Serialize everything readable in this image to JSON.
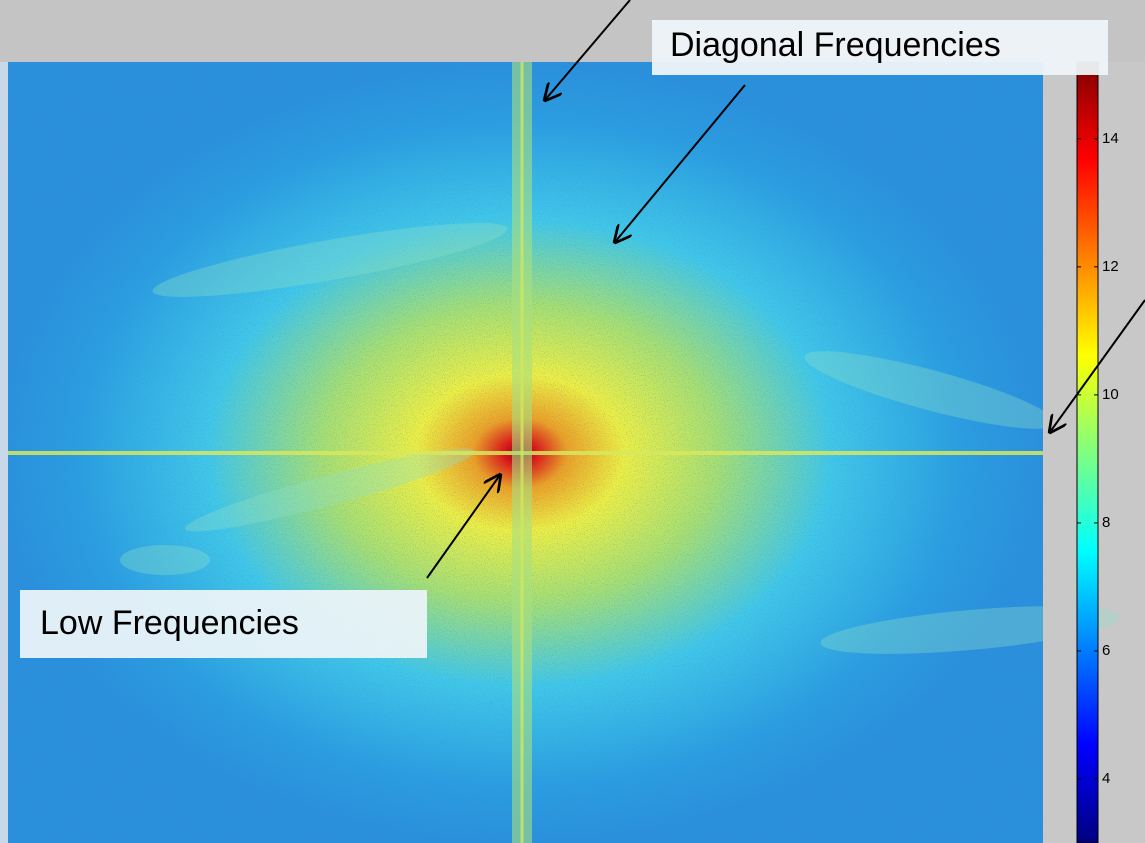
{
  "chart_data": {
    "type": "image",
    "colormap": "jet",
    "clim": [
      3,
      15.2
    ],
    "cticks": [
      4,
      6,
      8,
      10,
      12,
      14
    ],
    "annotations": [
      "Diagonal Frequencies",
      "Low Frequencies"
    ]
  }
}
